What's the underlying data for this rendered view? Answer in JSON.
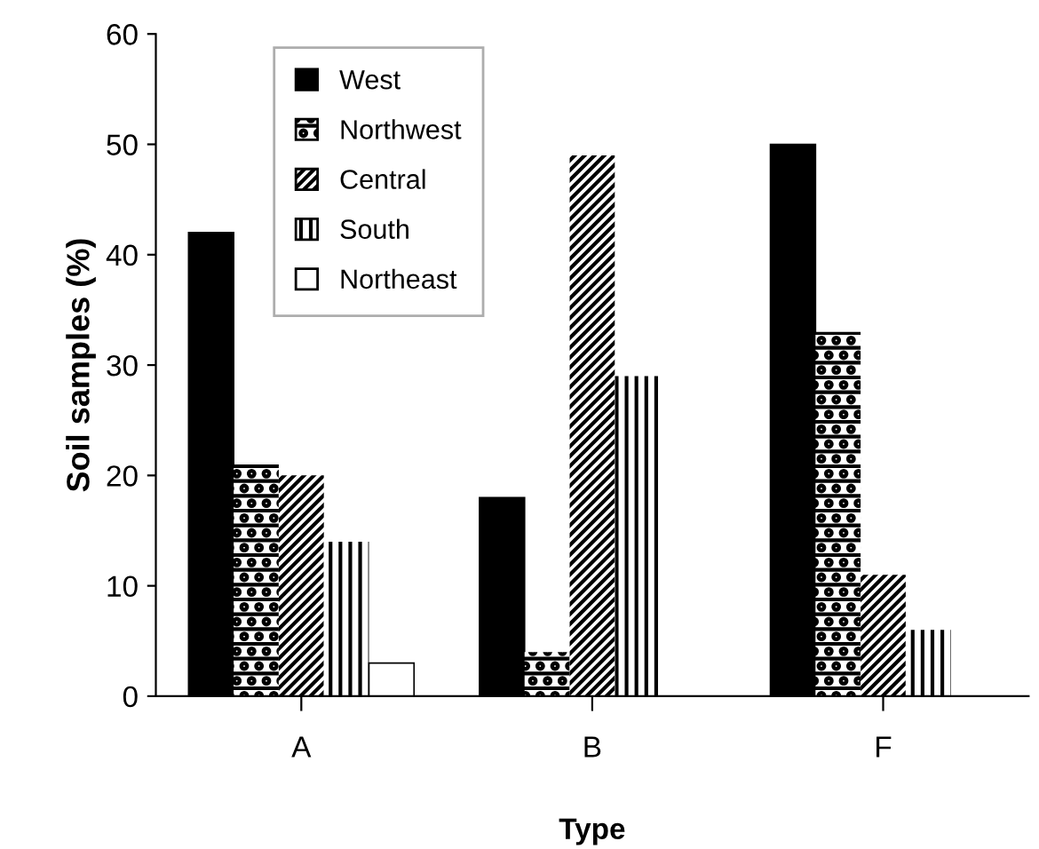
{
  "chart_data": {
    "type": "bar",
    "xlabel": "Type",
    "ylabel": "Soil samples (%)",
    "categories": [
      "A",
      "B",
      "F"
    ],
    "series": [
      {
        "name": "West",
        "color": "#000000",
        "values": [
          42,
          18,
          50
        ]
      },
      {
        "name": "Northwest",
        "color": "#000000",
        "values": [
          21,
          4,
          33
        ]
      },
      {
        "name": "Central",
        "color": "#000000",
        "values": [
          20,
          49,
          11
        ]
      },
      {
        "name": "South",
        "color": "#000000",
        "values": [
          14,
          29,
          6
        ]
      },
      {
        "name": "Northeast",
        "color": "#ffffff",
        "values": [
          3,
          null,
          null
        ]
      }
    ],
    "ylim": [
      0,
      60
    ],
    "yticks": [
      0,
      10,
      20,
      30,
      40,
      50,
      60
    ],
    "grid": false,
    "legend": "top left"
  }
}
